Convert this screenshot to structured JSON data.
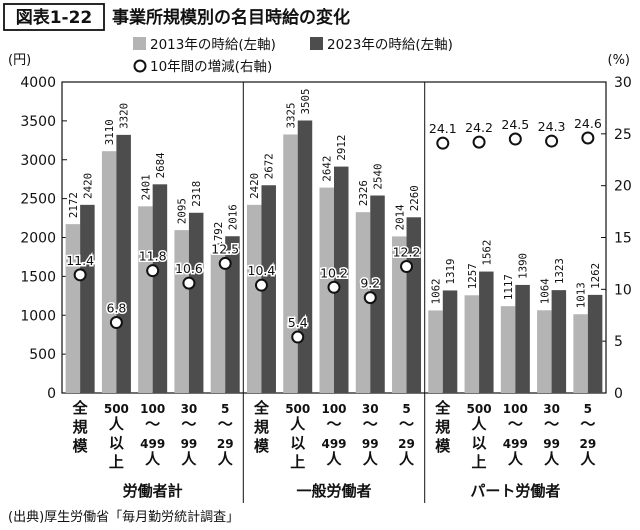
{
  "header": {
    "figure_number": "図表1-22",
    "title": "事業所規模別の名目時給の変化"
  },
  "legend": {
    "items": [
      {
        "label": "2013年の時給(左軸)",
        "color": "#b4b4b4",
        "kind": "bar"
      },
      {
        "label": "2023年の時給(左軸)",
        "color": "#4d4d4d",
        "kind": "bar"
      },
      {
        "label": "10年間の増減(右軸)",
        "color": "#ffffff",
        "kind": "marker"
      }
    ]
  },
  "axes": {
    "left_unit": "(円)",
    "right_unit": "(%)",
    "left_ticks": [
      "0",
      "500",
      "1000",
      "1500",
      "2000",
      "2500",
      "3000",
      "3500",
      "4000"
    ],
    "right_ticks": [
      "0",
      "5",
      "10",
      "15",
      "20",
      "25",
      "30"
    ]
  },
  "source": "(出典)厚生労働省「毎月勤労統計調査」",
  "chart_data": {
    "type": "bar",
    "ylim_left": [
      0,
      4000
    ],
    "ylim_right": [
      0,
      30
    ],
    "grid": false,
    "legend_position": "top",
    "groups": [
      {
        "name": "労働者計",
        "categories": [
          "全規模",
          "500人以上",
          "100〜499人",
          "30〜99人",
          "5〜29人"
        ]
      },
      {
        "name": "一般労働者",
        "categories": [
          "全規模",
          "500人以上",
          "100〜499人",
          "30〜99人",
          "5〜29人"
        ]
      },
      {
        "name": "パート労働者",
        "categories": [
          "全規模",
          "500人以上",
          "100〜499人",
          "30〜99人",
          "5〜29人"
        ]
      }
    ],
    "category_lines": [
      [
        "全",
        "規",
        "模"
      ],
      [
        "500",
        "人",
        "以",
        "上"
      ],
      [
        "100",
        "〜",
        "499",
        "人"
      ],
      [
        "30",
        "〜",
        "99",
        "人"
      ],
      [
        "5",
        "〜",
        "29",
        "人"
      ],
      [
        "全",
        "規",
        "模"
      ],
      [
        "500",
        "人",
        "以",
        "上"
      ],
      [
        "100",
        "〜",
        "499",
        "人"
      ],
      [
        "30",
        "〜",
        "99",
        "人"
      ],
      [
        "5",
        "〜",
        "29",
        "人"
      ],
      [
        "全",
        "規",
        "模"
      ],
      [
        "500",
        "人",
        "以",
        "上"
      ],
      [
        "100",
        "〜",
        "499",
        "人"
      ],
      [
        "30",
        "〜",
        "99",
        "人"
      ],
      [
        "5",
        "〜",
        "29",
        "人"
      ]
    ],
    "series": [
      {
        "name": "2013年の時給(左軸)",
        "axis": "left",
        "type": "bar",
        "values": [
          2172,
          3110,
          2401,
          2095,
          1792,
          2420,
          3325,
          2642,
          2326,
          2014,
          1062,
          1257,
          1117,
          1064,
          1013
        ],
        "labels": [
          "2172",
          "3110",
          "2401",
          "2095",
          "1792",
          "2420",
          "3325",
          "2642",
          "2326",
          "2014",
          "1062",
          "1257",
          "1117",
          "1064",
          "1013"
        ]
      },
      {
        "name": "2023年の時給(左軸)",
        "axis": "left",
        "type": "bar",
        "values": [
          2420,
          3320,
          2684,
          2318,
          2016,
          2672,
          3505,
          2912,
          2540,
          2260,
          1319,
          1562,
          1390,
          1323,
          1262
        ],
        "labels": [
          "2420",
          "3320",
          "2684",
          "2318",
          "2016",
          "2672",
          "3505",
          "2912",
          "2540",
          "2260",
          "1319",
          "1562",
          "1390",
          "1323",
          "1262"
        ]
      },
      {
        "name": "10年間の増減(右軸)",
        "axis": "right",
        "type": "scatter",
        "values": [
          11.4,
          6.8,
          11.8,
          10.6,
          12.5,
          10.4,
          5.4,
          10.2,
          9.2,
          12.2,
          24.1,
          24.2,
          24.5,
          24.3,
          24.6
        ],
        "labels": [
          "11.4",
          "6.8",
          "11.8",
          "10.6",
          "12.5",
          "10.4",
          "5.4",
          "10.2",
          "9.2",
          "12.2",
          "24.1",
          "24.2",
          "24.5",
          "24.3",
          "24.6"
        ]
      }
    ]
  }
}
